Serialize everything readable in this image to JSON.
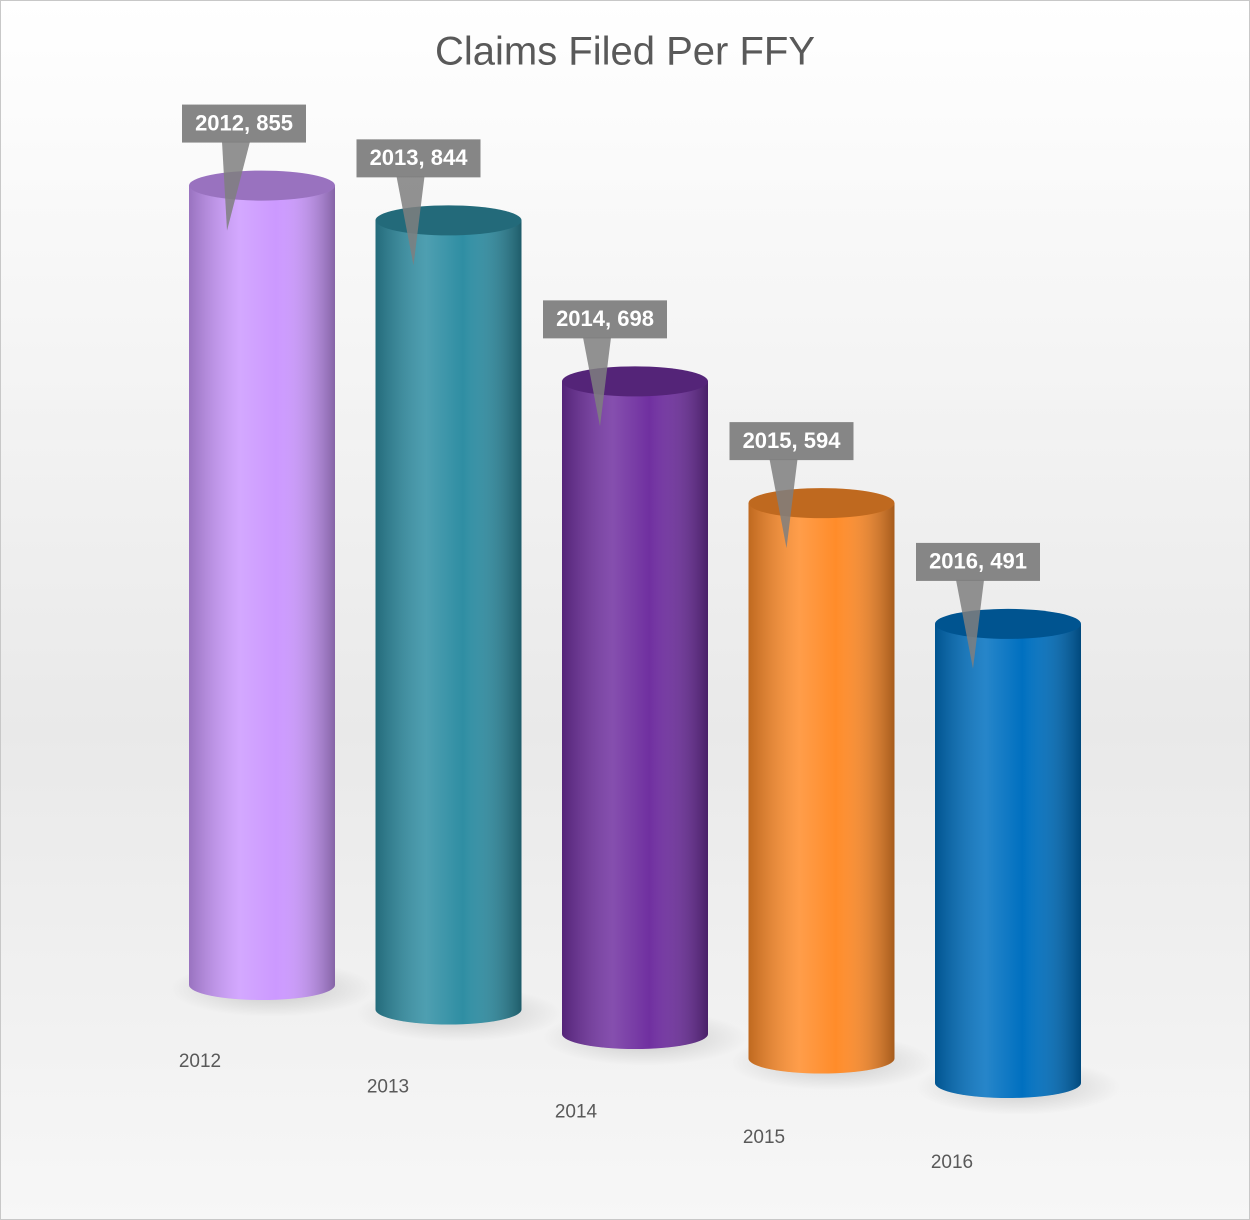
{
  "chart_data": {
    "type": "cylinder",
    "title": "Claims Filed Per FFY",
    "categories": [
      "2012",
      "2013",
      "2014",
      "2015",
      "2016"
    ],
    "values": [
      855,
      844,
      698,
      594,
      491
    ],
    "value_labels": [
      "2012, 855",
      "2013, 844",
      "2014, 698",
      "2015, 594",
      "2016, 491"
    ],
    "colors": [
      "#cc99ff",
      "#2f8ea3",
      "#7030a0",
      "#ff8c2a",
      "#0070c0"
    ]
  }
}
